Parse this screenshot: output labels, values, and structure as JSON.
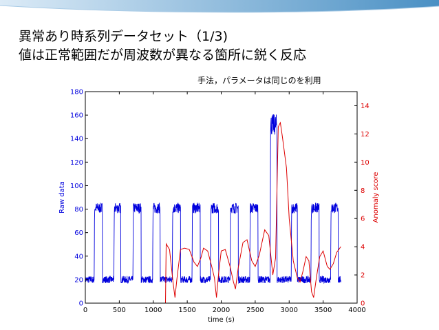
{
  "slide": {
    "title_line1": "異常あり時系列データセット（1/3)",
    "title_line2": "値は正常範囲だが周波数が異なる箇所に鋭く反応",
    "note": "手法，パラメータは同じのを利用"
  },
  "colors": {
    "raw": "#0000dd",
    "score": "#dd0000",
    "axis": "#000000",
    "banner_light": "#dcebf7",
    "banner_dark": "#4a90c4"
  },
  "chart_data": {
    "type": "line",
    "xlabel": "time (s)",
    "ylabel_left": "Raw data",
    "ylabel_right": "Anomaly score",
    "xlim": [
      0,
      4000
    ],
    "ylim_left": [
      0,
      180
    ],
    "ylim_right": [
      0,
      15
    ],
    "xticks": [
      0,
      500,
      1000,
      1500,
      2000,
      2500,
      3000,
      3500,
      4000
    ],
    "yticks_left": [
      0,
      20,
      40,
      60,
      80,
      100,
      120,
      140,
      160,
      180
    ],
    "yticks_right": [
      0,
      2,
      4,
      6,
      8,
      10,
      12,
      14
    ],
    "series": [
      {
        "axis": "left",
        "low_level": 20,
        "high_level": 80,
        "high_pulses": [
          [
            130,
            250
          ],
          [
            420,
            520
          ],
          [
            700,
            820
          ],
          [
            990,
            1100
          ],
          [
            1280,
            1400
          ],
          [
            1570,
            1690
          ],
          [
            1840,
            1960
          ],
          [
            2130,
            2250
          ],
          [
            2420,
            2540
          ],
          [
            2720,
            2820,
            150
          ],
          [
            3030,
            3120
          ],
          [
            3320,
            3440
          ],
          [
            3610,
            3720
          ]
        ],
        "x_end": 3760
      },
      {
        "axis": "right",
        "points": [
          [
            0,
            0
          ],
          [
            1180,
            0
          ],
          [
            1190,
            4.2
          ],
          [
            1240,
            3.8
          ],
          [
            1290,
            1.5
          ],
          [
            1320,
            0.4
          ],
          [
            1350,
            1.8
          ],
          [
            1400,
            3.8
          ],
          [
            1460,
            3.9
          ],
          [
            1530,
            3.8
          ],
          [
            1600,
            2.9
          ],
          [
            1650,
            2.6
          ],
          [
            1700,
            3.2
          ],
          [
            1740,
            3.9
          ],
          [
            1800,
            3.7
          ],
          [
            1860,
            2.6
          ],
          [
            1900,
            1.8
          ],
          [
            1930,
            0.4
          ],
          [
            1960,
            2.0
          ],
          [
            2000,
            3.7
          ],
          [
            2060,
            3.8
          ],
          [
            2130,
            2.6
          ],
          [
            2180,
            1.5
          ],
          [
            2210,
            1.0
          ],
          [
            2250,
            2.5
          ],
          [
            2320,
            4.3
          ],
          [
            2380,
            4.5
          ],
          [
            2450,
            3.0
          ],
          [
            2500,
            2.6
          ],
          [
            2560,
            3.4
          ],
          [
            2640,
            5.2
          ],
          [
            2700,
            4.8
          ],
          [
            2760,
            2.0
          ],
          [
            2800,
            3.2
          ],
          [
            2840,
            12.5
          ],
          [
            2870,
            12.8
          ],
          [
            2900,
            11.8
          ],
          [
            2960,
            9.6
          ],
          [
            3000,
            6.0
          ],
          [
            3060,
            3.0
          ],
          [
            3120,
            1.8
          ],
          [
            3160,
            1.5
          ],
          [
            3200,
            2.2
          ],
          [
            3250,
            3.3
          ],
          [
            3290,
            3.0
          ],
          [
            3330,
            0.8
          ],
          [
            3360,
            0.4
          ],
          [
            3400,
            1.8
          ],
          [
            3450,
            3.3
          ],
          [
            3500,
            3.7
          ],
          [
            3560,
            2.6
          ],
          [
            3600,
            2.4
          ],
          [
            3650,
            2.8
          ],
          [
            3700,
            3.6
          ],
          [
            3760,
            4.0
          ]
        ]
      }
    ]
  }
}
